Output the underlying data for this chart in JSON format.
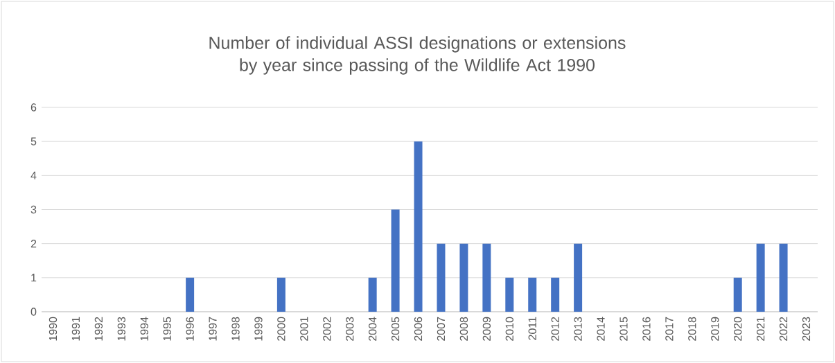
{
  "chart_data": {
    "type": "bar",
    "title": "Number of individual ASSI designations or extensions by year since passing of the Wildlife Act 1990",
    "categories": [
      "1990",
      "1991",
      "1992",
      "1993",
      "1994",
      "1995",
      "1996",
      "1997",
      "1998",
      "1999",
      "2000",
      "2001",
      "2002",
      "2003",
      "2004",
      "2005",
      "2006",
      "2007",
      "2008",
      "2009",
      "2010",
      "2011",
      "2012",
      "2013",
      "2014",
      "2015",
      "2016",
      "2017",
      "2018",
      "2019",
      "2020",
      "2021",
      "2022",
      "2023"
    ],
    "values": [
      0,
      0,
      0,
      0,
      0,
      0,
      1,
      0,
      0,
      0,
      1,
      0,
      0,
      0,
      1,
      3,
      5,
      2,
      2,
      2,
      1,
      1,
      1,
      2,
      0,
      0,
      0,
      0,
      0,
      0,
      1,
      2,
      2,
      0
    ],
    "color": "#4472c4",
    "ylim": [
      0,
      6
    ],
    "yticks": [
      0,
      1,
      2,
      3,
      4,
      5,
      6
    ],
    "grid": "y"
  }
}
